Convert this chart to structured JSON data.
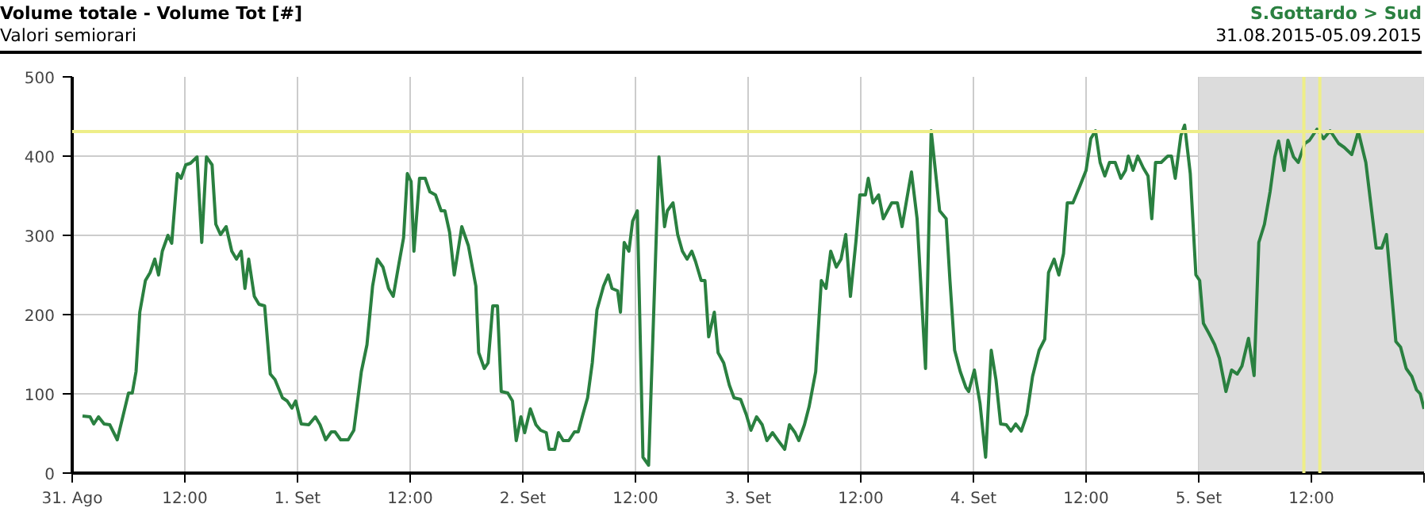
{
  "chart_data": {
    "type": "line",
    "title": "Volume totale - Volume Tot [#]",
    "subtitle": "Valori semiorari",
    "annotations": [
      "S.Gottardo > Sud",
      "31.08.2015-05.09.2015"
    ],
    "x": [
      "2015-08-31T01:06",
      "2015-08-31T01:54",
      "2015-08-31T02:18",
      "2015-08-31T02:48",
      "2015-08-31T03:24",
      "2015-08-31T04:00",
      "2015-08-31T04:48",
      "2015-08-31T06:00",
      "2015-08-31T06:24",
      "2015-08-31T06:48",
      "2015-08-31T07:12",
      "2015-08-31T07:48",
      "2015-08-31T08:18",
      "2015-08-31T08:48",
      "2015-08-31T09:12",
      "2015-08-31T09:36",
      "2015-08-31T10:12",
      "2015-08-31T10:36",
      "2015-08-31T11:12",
      "2015-08-31T11:36",
      "2015-08-31T12:06",
      "2015-08-31T12:36",
      "2015-08-31T13:18",
      "2015-08-31T13:48",
      "2015-08-31T14:18",
      "2015-08-31T14:54",
      "2015-08-31T15:18",
      "2015-08-31T15:48",
      "2015-08-31T16:24",
      "2015-08-31T17:00",
      "2015-08-31T17:30",
      "2015-08-31T18:00",
      "2015-08-31T18:24",
      "2015-08-31T18:48",
      "2015-08-31T19:24",
      "2015-08-31T19:54",
      "2015-08-31T20:30",
      "2015-08-31T21:06",
      "2015-08-31T21:36",
      "2015-08-31T22:24",
      "2015-08-31T22:54",
      "2015-08-31T23:24",
      "2015-08-31T23:48",
      "2015-09-01T00:24",
      "2015-09-01T01:12",
      "2015-09-01T01:54",
      "2015-09-01T02:24",
      "2015-09-01T03:00",
      "2015-09-01T03:36",
      "2015-09-01T04:00",
      "2015-09-01T04:36",
      "2015-09-01T05:24",
      "2015-09-01T06:00",
      "2015-09-01T06:48",
      "2015-09-01T07:24",
      "2015-09-01T08:00",
      "2015-09-01T08:30",
      "2015-09-01T09:06",
      "2015-09-01T09:42",
      "2015-09-01T10:12",
      "2015-09-01T10:48",
      "2015-09-01T11:18",
      "2015-09-01T11:42",
      "2015-09-01T12:06",
      "2015-09-01T12:24",
      "2015-09-01T13:00",
      "2015-09-01T13:36",
      "2015-09-01T14:06",
      "2015-09-01T14:42",
      "2015-09-01T15:18",
      "2015-09-01T15:42",
      "2015-09-01T16:12",
      "2015-09-01T16:42",
      "2015-09-01T17:30",
      "2015-09-01T18:12",
      "2015-09-01T19:00",
      "2015-09-01T19:18",
      "2015-09-01T19:54",
      "2015-09-01T20:18",
      "2015-09-01T20:48",
      "2015-09-01T21:18",
      "2015-09-01T21:42",
      "2015-09-01T22:24",
      "2015-09-01T22:54",
      "2015-09-01T23:18",
      "2015-09-01T23:48",
      "2015-09-02T00:12",
      "2015-09-02T00:48",
      "2015-09-02T01:24",
      "2015-09-02T01:54",
      "2015-09-02T02:30",
      "2015-09-02T02:48",
      "2015-09-02T03:24",
      "2015-09-02T03:48",
      "2015-09-02T04:18",
      "2015-09-02T04:54",
      "2015-09-02T05:30",
      "2015-09-02T05:54",
      "2015-09-02T06:24",
      "2015-09-02T06:54",
      "2015-09-02T07:24",
      "2015-09-02T07:54",
      "2015-09-02T08:36",
      "2015-09-02T09:06",
      "2015-09-02T09:30",
      "2015-09-02T10:06",
      "2015-09-02T10:24",
      "2015-09-02T10:48",
      "2015-09-02T11:18",
      "2015-09-02T11:42",
      "2015-09-02T12:12",
      "2015-09-02T12:48",
      "2015-09-02T13:24",
      "2015-09-02T14:30",
      "2015-09-02T15:06",
      "2015-09-02T15:24",
      "2015-09-02T16:00",
      "2015-09-02T16:30",
      "2015-09-02T17:00",
      "2015-09-02T17:30",
      "2015-09-02T18:00",
      "2015-09-02T18:24",
      "2015-09-02T19:00",
      "2015-09-02T19:24",
      "2015-09-02T19:48",
      "2015-09-02T20:24",
      "2015-09-02T20:48",
      "2015-09-02T21:24",
      "2015-09-02T22:00",
      "2015-09-02T22:30",
      "2015-09-02T23:12",
      "2015-09-02T23:48",
      "2015-09-03T00:18",
      "2015-09-03T00:54",
      "2015-09-03T01:30",
      "2015-09-03T02:00",
      "2015-09-03T02:36",
      "2015-09-03T03:12",
      "2015-09-03T03:54",
      "2015-09-03T04:24",
      "2015-09-03T05:00",
      "2015-09-03T05:24",
      "2015-09-03T06:00",
      "2015-09-03T06:30",
      "2015-09-03T07:12",
      "2015-09-03T07:48",
      "2015-09-03T08:18",
      "2015-09-03T08:48",
      "2015-09-03T09:24",
      "2015-09-03T09:54",
      "2015-09-03T10:24",
      "2015-09-03T10:54",
      "2015-09-03T11:30",
      "2015-09-03T11:54",
      "2015-09-03T12:30",
      "2015-09-03T12:48",
      "2015-09-03T13:18",
      "2015-09-03T13:54",
      "2015-09-03T14:24",
      "2015-09-03T15:18",
      "2015-09-03T15:54",
      "2015-09-03T16:24",
      "2015-09-03T17:24",
      "2015-09-03T18:00",
      "2015-09-03T18:54",
      "2015-09-03T19:30",
      "2015-09-03T20:24",
      "2015-09-03T21:06",
      "2015-09-03T21:30",
      "2015-09-03T22:00",
      "2015-09-03T22:36",
      "2015-09-03T23:12",
      "2015-09-03T23:30",
      "2015-09-04T00:06",
      "2015-09-04T00:42",
      "2015-09-04T01:18",
      "2015-09-04T01:54",
      "2015-09-04T02:24",
      "2015-09-04T02:54",
      "2015-09-04T03:30",
      "2015-09-04T04:00",
      "2015-09-04T04:30",
      "2015-09-04T05:06",
      "2015-09-04T05:42",
      "2015-09-04T06:18",
      "2015-09-04T07:00",
      "2015-09-04T07:36",
      "2015-09-04T08:00",
      "2015-09-04T08:36",
      "2015-09-04T09:06",
      "2015-09-04T09:36",
      "2015-09-04T10:00",
      "2015-09-04T10:36",
      "2015-09-04T11:18",
      "2015-09-04T12:00",
      "2015-09-04T12:30",
      "2015-09-04T13:00",
      "2015-09-04T13:30",
      "2015-09-04T14:00",
      "2015-09-04T14:30",
      "2015-09-04T15:06",
      "2015-09-04T15:42",
      "2015-09-04T16:12",
      "2015-09-04T16:30",
      "2015-09-04T17:00",
      "2015-09-04T17:30",
      "2015-09-04T18:06",
      "2015-09-04T18:36",
      "2015-09-04T19:00",
      "2015-09-04T19:24",
      "2015-09-04T20:00",
      "2015-09-04T20:42",
      "2015-09-04T21:06",
      "2015-09-04T21:30",
      "2015-09-04T22:06",
      "2015-09-04T22:30",
      "2015-09-04T23:06",
      "2015-09-04T23:42",
      "2015-09-05T00:06",
      "2015-09-05T00:30",
      "2015-09-05T01:06",
      "2015-09-05T01:42",
      "2015-09-05T02:12",
      "2015-09-05T02:54",
      "2015-09-05T03:30",
      "2015-09-05T04:06",
      "2015-09-05T04:36",
      "2015-09-05T05:18",
      "2015-09-05T05:54",
      "2015-09-05T06:24",
      "2015-09-05T07:00",
      "2015-09-05T07:36",
      "2015-09-05T08:06",
      "2015-09-05T08:30",
      "2015-09-05T09:06",
      "2015-09-05T09:30",
      "2015-09-05T10:06",
      "2015-09-05T10:36",
      "2015-09-05T11:18",
      "2015-09-05T11:48",
      "2015-09-05T12:36",
      "2015-09-05T13:18",
      "2015-09-05T14:00",
      "2015-09-05T14:54",
      "2015-09-05T15:30",
      "2015-09-05T16:18",
      "2015-09-05T17:00",
      "2015-09-05T17:48",
      "2015-09-05T18:54",
      "2015-09-05T19:30",
      "2015-09-05T20:00",
      "2015-09-05T21:00",
      "2015-09-05T21:30",
      "2015-09-05T22:06",
      "2015-09-05T22:42",
      "2015-09-05T23:12",
      "2015-09-05T23:36",
      "2015-09-06T00:00"
    ],
    "series": [
      {
        "color": "#2a8040",
        "values": [
          72,
          71,
          62,
          71,
          62,
          61,
          42,
          101,
          101,
          128,
          203,
          243,
          253,
          270,
          250,
          280,
          300,
          290,
          378,
          372,
          389,
          391,
          399,
          291,
          399,
          389,
          314,
          301,
          311,
          280,
          270,
          280,
          233,
          270,
          223,
          213,
          211,
          125,
          118,
          95,
          91,
          82,
          91,
          62,
          61,
          71,
          61,
          42,
          52,
          52,
          42,
          42,
          54,
          128,
          162,
          236,
          270,
          260,
          233,
          223,
          264,
          297,
          378,
          368,
          280,
          372,
          372,
          355,
          351,
          331,
          331,
          304,
          250,
          311,
          287,
          236,
          152,
          132,
          139,
          211,
          211,
          103,
          101,
          91,
          41,
          71,
          51,
          81,
          61,
          54,
          51,
          30,
          30,
          51,
          41,
          41,
          52,
          52,
          74,
          95,
          139,
          206,
          236,
          250,
          233,
          230,
          203,
          291,
          280,
          318,
          331,
          20,
          10,
          399,
          311,
          331,
          341,
          301,
          280,
          270,
          280,
          267,
          243,
          243,
          172,
          203,
          152,
          139,
          111,
          95,
          93,
          74,
          54,
          71,
          61,
          41,
          51,
          41,
          30,
          61,
          51,
          41,
          61,
          84,
          128,
          243,
          233,
          280,
          260,
          270,
          301,
          223,
          294,
          351,
          351,
          372,
          341,
          351,
          321,
          341,
          341,
          311,
          380,
          321,
          132,
          432,
          331,
          321,
          243,
          155,
          128,
          108,
          103,
          130,
          88,
          20,
          155,
          118,
          62,
          61,
          53,
          62,
          53,
          74,
          122,
          155,
          169,
          253,
          270,
          250,
          277,
          341,
          341,
          361,
          382,
          422,
          432,
          392,
          375,
          392,
          392,
          372,
          382,
          400,
          382,
          400,
          385,
          375,
          321,
          392,
          392,
          400,
          400,
          372,
          426,
          439,
          378,
          250,
          243,
          189,
          176,
          162,
          145,
          103,
          130,
          125,
          135,
          170,
          123,
          291,
          314,
          355,
          399,
          419,
          382,
          420,
          399,
          392,
          416,
          420,
          434,
          422,
          432,
          416,
          411,
          402,
          431,
          392,
          284,
          284,
          301,
          166,
          159,
          132,
          122,
          105,
          100,
          81
        ]
      }
    ],
    "xlim": [
      "2015-08-31T00:00",
      "2015-09-06T00:00"
    ],
    "ylim": [
      0,
      500
    ],
    "yticks": [
      0,
      100,
      200,
      300,
      400,
      500
    ],
    "xticks": [
      {
        "value": "2015-08-31T00:00",
        "label": "31. Ago"
      },
      {
        "value": "2015-08-31T12:00",
        "label": "12:00"
      },
      {
        "value": "2015-09-01T00:00",
        "label": "1. Set"
      },
      {
        "value": "2015-09-01T12:00",
        "label": "12:00"
      },
      {
        "value": "2015-09-02T00:00",
        "label": "2. Set"
      },
      {
        "value": "2015-09-02T12:00",
        "label": "12:00"
      },
      {
        "value": "2015-09-03T00:00",
        "label": "3. Set"
      },
      {
        "value": "2015-09-03T12:00",
        "label": "12:00"
      },
      {
        "value": "2015-09-04T00:00",
        "label": "4. Set"
      },
      {
        "value": "2015-09-04T12:00",
        "label": "12:00"
      },
      {
        "value": "2015-09-05T00:00",
        "label": "5. Set"
      },
      {
        "value": "2015-09-05T12:00",
        "label": "12:00"
      },
      {
        "value": "2015-09-06T00:00",
        "label": null
      }
    ],
    "grid": true,
    "marker": "none",
    "line_style": "solid",
    "bands": [
      {
        "axis": "x",
        "from": "2015-09-05T00:00",
        "to": "2015-09-06T00:00",
        "color": "#dcdcdc"
      }
    ],
    "ref_lines": [
      {
        "axis": "y",
        "value": 431,
        "color": "#eeee88"
      },
      {
        "axis": "x",
        "value": "2015-09-05T11:12",
        "color": "#eeee88"
      },
      {
        "axis": "x",
        "value": "2015-09-05T12:54",
        "color": "#eeee88"
      }
    ]
  }
}
